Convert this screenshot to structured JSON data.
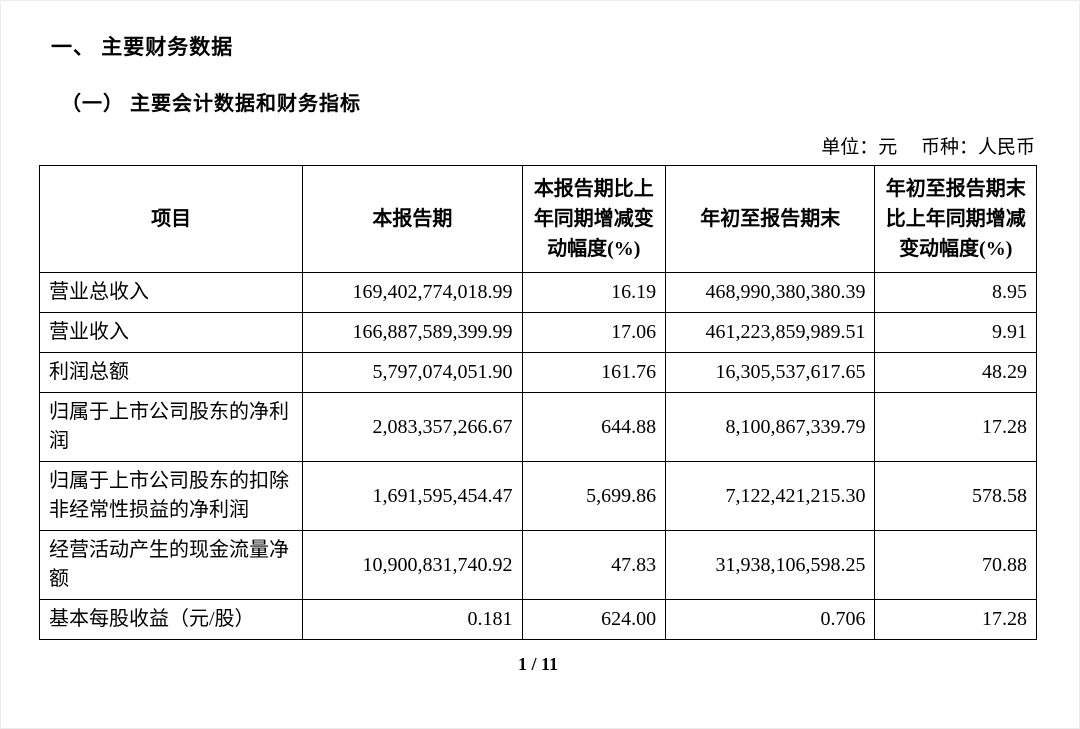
{
  "document": {
    "section_heading": "一、 主要财务数据",
    "subsection_heading": "（一） 主要会计数据和财务指标",
    "unit_note": "单位：元　 币种：人民币",
    "page_indicator": "1 / 11"
  },
  "table": {
    "headers": [
      "项目",
      "本报告期",
      "本报告期比上年同期增减变动幅度(%)",
      "年初至报告期末",
      "年初至报告期末比上年同期增减变动幅度(%)"
    ],
    "rows": [
      [
        "营业总收入",
        "169,402,774,018.99",
        "16.19",
        "468,990,380,380.39",
        "8.95"
      ],
      [
        "营业收入",
        "166,887,589,399.99",
        "17.06",
        "461,223,859,989.51",
        "9.91"
      ],
      [
        "利润总额",
        "5,797,074,051.90",
        "161.76",
        "16,305,537,617.65",
        "48.29"
      ],
      [
        "归属于上市公司股东的净利润",
        "2,083,357,266.67",
        "644.88",
        "8,100,867,339.79",
        "17.28"
      ],
      [
        "归属于上市公司股东的扣除非经常性损益的净利润",
        "1,691,595,454.47",
        "5,699.86",
        "7,122,421,215.30",
        "578.58"
      ],
      [
        "经营活动产生的现金流量净额",
        "10,900,831,740.92",
        "47.83",
        "31,938,106,598.25",
        "70.88"
      ],
      [
        "基本每股收益（元/股）",
        "0.181",
        "624.00",
        "0.706",
        "17.28"
      ]
    ]
  }
}
